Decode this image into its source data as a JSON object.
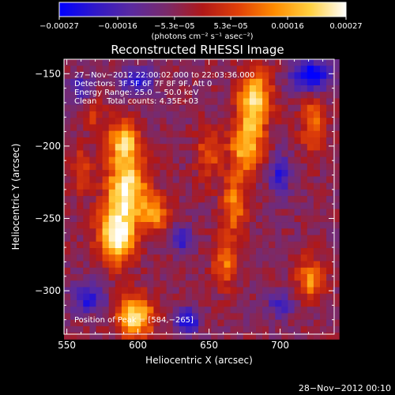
{
  "chart_data": {
    "type": "heatmap",
    "title": "Reconstructed RHESSI Image",
    "xlabel": "Heliocentric X (arcsec)",
    "ylabel": "Heliocentric Y (arcsec)",
    "xlim": [
      548,
      738
    ],
    "ylim": [
      -330,
      -140
    ],
    "xticks": [
      550,
      600,
      650,
      700
    ],
    "xtick_labels": [
      "550",
      "600",
      "650",
      "700"
    ],
    "yticks": [
      -150,
      -200,
      -250,
      -300
    ],
    "ytick_labels": [
      "−150",
      "−200",
      "−250",
      "−300"
    ],
    "colorbar": {
      "range": [
        -0.00027,
        0.00027
      ],
      "ticks": [
        -0.00027,
        -0.00016,
        -5.3e-05,
        5.3e-05,
        0.00016,
        0.00027
      ],
      "tick_labels": [
        "−0.00027",
        "−0.00016",
        "−5.3e−05",
        "5.3e−05",
        "0.00016",
        "0.00027"
      ],
      "unit_label": "(photons cm⁻² s⁻¹ asec⁻²)",
      "colormap": [
        "#0000ff",
        "#3018c8",
        "#5a2aa0",
        "#7a2a6a",
        "#b01818",
        "#e04008",
        "#ff8c00",
        "#ffd040",
        "#ffffff"
      ]
    },
    "annotations": [
      "27−Nov−2012 22:00:02.000 to 22:03:36.000",
      "Detectors: 3F 5F 6F 7F 8F 9F, Att 0",
      "Energy Range: 25.0 − 50.0 keV",
      "Clean    Total counts: 4.35E+03"
    ],
    "peak_text": "Position of Peak = [584,−265]",
    "peak": [
      584,
      -265
    ],
    "sources": [
      {
        "x": 590,
        "y": -198,
        "sx": 8,
        "sy": 11,
        "amp": 0.75
      },
      {
        "x": 592,
        "y": -230,
        "sx": 10,
        "sy": 14,
        "amp": 0.9
      },
      {
        "x": 585,
        "y": -262,
        "sx": 9,
        "sy": 13,
        "amp": 1.0
      },
      {
        "x": 598,
        "y": -318,
        "sx": 9,
        "sy": 10,
        "amp": 0.85
      },
      {
        "x": 612,
        "y": -247,
        "sx": 7,
        "sy": 9,
        "amp": 0.55
      },
      {
        "x": 682,
        "y": -168,
        "sx": 8,
        "sy": 14,
        "amp": 0.85
      },
      {
        "x": 676,
        "y": -200,
        "sx": 8,
        "sy": 13,
        "amp": 0.7
      },
      {
        "x": 668,
        "y": -240,
        "sx": 6,
        "sy": 14,
        "amp": 0.55
      },
      {
        "x": 662,
        "y": -280,
        "sx": 6,
        "sy": 12,
        "amp": 0.5
      },
      {
        "x": 650,
        "y": -205,
        "sx": 6,
        "sy": 13,
        "amp": 0.4
      },
      {
        "x": 723,
        "y": -185,
        "sx": 6,
        "sy": 14,
        "amp": 0.45
      },
      {
        "x": 722,
        "y": -292,
        "sx": 7,
        "sy": 10,
        "amp": 0.55
      },
      {
        "x": 560,
        "y": -215,
        "sx": 5,
        "sy": 11,
        "amp": 0.35
      },
      {
        "x": 568,
        "y": -178,
        "sx": 5,
        "sy": 7,
        "amp": 0.3
      }
    ],
    "negative_sources": [
      {
        "x": 600,
        "y": -155,
        "sx": 8,
        "sy": 6,
        "amp": 0.55
      },
      {
        "x": 722,
        "y": -152,
        "sx": 10,
        "sy": 8,
        "amp": 0.7
      },
      {
        "x": 565,
        "y": -305,
        "sx": 8,
        "sy": 7,
        "amp": 0.55
      },
      {
        "x": 635,
        "y": -320,
        "sx": 6,
        "sy": 6,
        "amp": 0.6
      },
      {
        "x": 700,
        "y": -220,
        "sx": 5,
        "sy": 10,
        "amp": 0.5
      },
      {
        "x": 560,
        "y": -160,
        "sx": 6,
        "sy": 6,
        "amp": 0.4
      },
      {
        "x": 632,
        "y": -265,
        "sx": 5,
        "sy": 7,
        "amp": 0.45
      },
      {
        "x": 700,
        "y": -310,
        "sx": 6,
        "sy": 6,
        "amp": 0.4
      }
    ],
    "grid": false
  },
  "footer": {
    "timestamp": "28−Nov−2012 00:10"
  }
}
